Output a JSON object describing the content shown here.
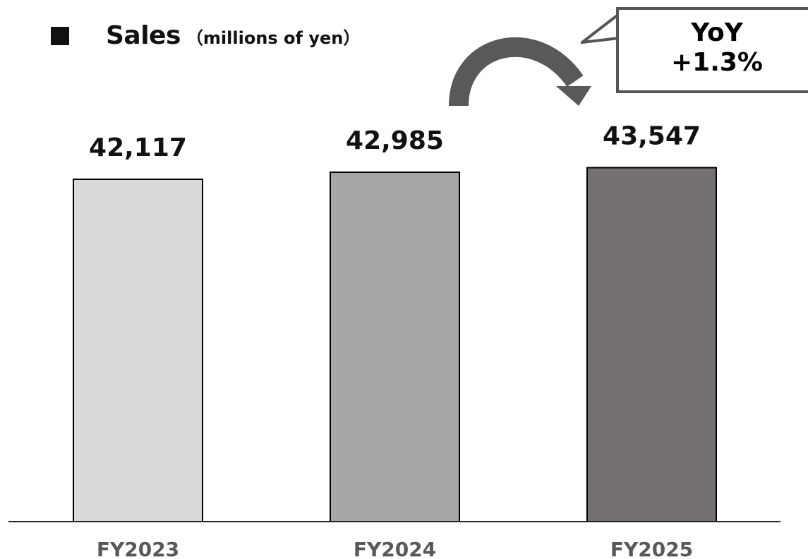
{
  "header": {
    "title": "Sales",
    "unit": "（millions of yen）"
  },
  "callout": {
    "line1": "YoY",
    "line2": "+1.3%"
  },
  "chart_data": {
    "type": "bar",
    "categories": [
      "FY2023",
      "FY2024",
      "FY2025"
    ],
    "values": [
      42117,
      42985,
      43547
    ],
    "value_labels": [
      "42,117",
      "42,985",
      "43,547"
    ],
    "bar_colors": [
      "#d9d9d9",
      "#a6a6a6",
      "#767171"
    ],
    "axis_color": "#222222",
    "category_label_color": "#595959",
    "xlabel": "",
    "ylabel": "",
    "grid": false,
    "legend": "none"
  }
}
